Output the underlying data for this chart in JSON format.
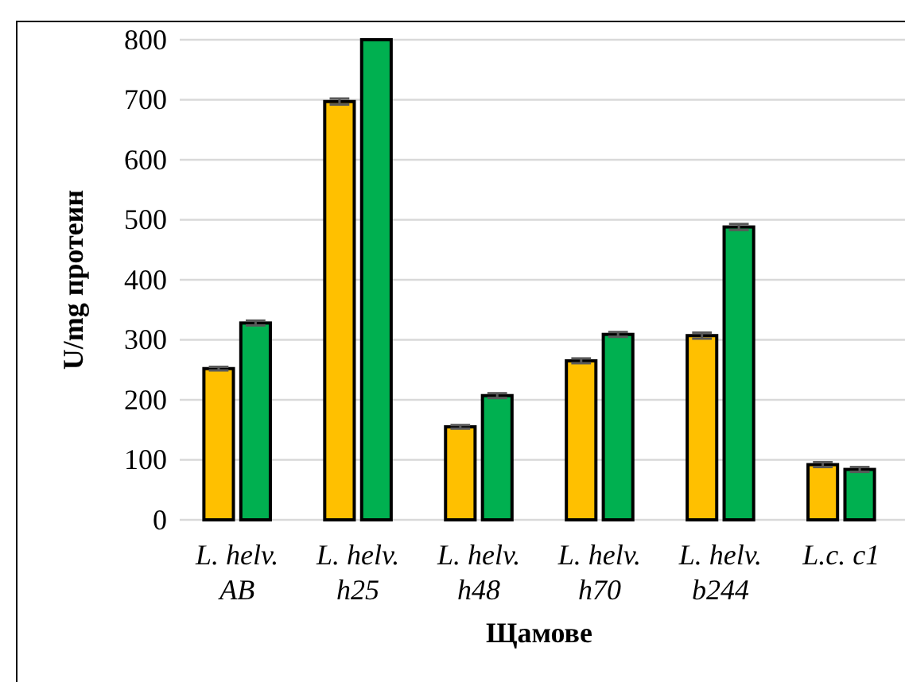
{
  "chart_data": {
    "type": "bar",
    "xlabel": "Щамове",
    "ylabel": "U/mg протеин",
    "categories": [
      "L. helv. AB",
      "L. helv. h25",
      "L. helv. h48",
      "L. helv. h70",
      "L. helv. b244",
      "L.c. c1"
    ],
    "series": [
      {
        "color": "#ffc000",
        "values": [
          252,
          697,
          155,
          265,
          307,
          92
        ],
        "errors": [
          3,
          5,
          3,
          4,
          5,
          4
        ]
      },
      {
        "color": "#00b050",
        "values": [
          328,
          800,
          207,
          309,
          488,
          84
        ],
        "errors": [
          4,
          null,
          4,
          4,
          5,
          4
        ]
      }
    ],
    "ylim": [
      0,
      800
    ],
    "yticks": [
      0,
      100,
      200,
      300,
      400,
      500,
      600,
      700,
      800
    ],
    "grid": "y"
  }
}
